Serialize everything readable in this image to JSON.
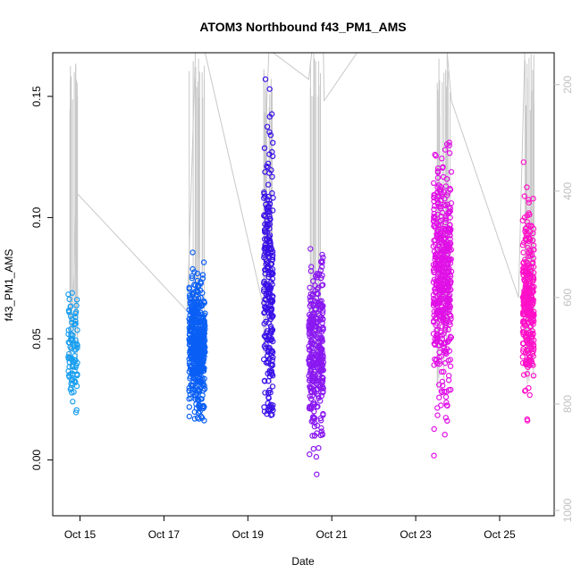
{
  "chart_data": {
    "type": "scatter",
    "title": "ATOM3 Northbound f43_PM1_AMS",
    "xlabel": "Date",
    "ylabel": "f43_PM1_AMS",
    "x_ticks": [
      "Oct 15",
      "Oct 17",
      "Oct 19",
      "Oct 21",
      "Oct 23",
      "Oct 25"
    ],
    "x_tick_day": [
      15,
      17,
      19,
      21,
      23,
      25
    ],
    "xlim_day": [
      14.35,
      26.3
    ],
    "ylim": [
      -0.023,
      0.168
    ],
    "y_ticks": [
      0.0,
      0.05,
      0.1,
      0.15
    ],
    "y_tick_labels": [
      "0.00",
      "0.05",
      "0.10",
      "0.15"
    ],
    "y2_ticks": [
      200,
      400,
      600,
      800,
      1000
    ],
    "y2_tick_labels": [
      "200",
      "400",
      "600",
      "800",
      "1000"
    ],
    "y2lim": [
      1010,
      140
    ],
    "grid": false,
    "series": [
      {
        "day_range": [
          14.72,
          14.94
        ],
        "y_center": 0.045,
        "y_spread": 0.011,
        "y_range": [
          -0.001,
          0.078
        ],
        "count": 90,
        "color": "#1a9ff0"
      },
      {
        "day_range": [
          17.6,
          17.98
        ],
        "y_center": 0.047,
        "y_spread": 0.012,
        "y_range": [
          0.016,
          0.13
        ],
        "count": 520,
        "color": "#0a5ff5"
      },
      {
        "day_range": [
          19.38,
          19.6
        ],
        "y_center": 0.07,
        "y_spread": 0.03,
        "y_range": [
          0.018,
          0.16
        ],
        "count": 260,
        "color": "#3a10e8"
      },
      {
        "day_range": [
          20.45,
          20.8
        ],
        "y_center": 0.045,
        "y_spread": 0.018,
        "y_range": [
          -0.016,
          0.122
        ],
        "count": 320,
        "color": "#8a18f0"
      },
      {
        "day_range": [
          23.42,
          23.85
        ],
        "y_center": 0.075,
        "y_spread": 0.022,
        "y_range": [
          -0.008,
          0.132
        ],
        "count": 470,
        "color": "#e010e6"
      },
      {
        "day_range": [
          25.55,
          25.82
        ],
        "y_center": 0.065,
        "y_spread": 0.017,
        "y_range": [
          0.015,
          0.132
        ],
        "count": 300,
        "color": "#ff10c8"
      }
    ],
    "altitude_trace": {
      "axis": "right",
      "color": "#c8c8c8",
      "path": [
        [
          14.72,
          720
        ],
        [
          14.78,
          680
        ],
        [
          14.82,
          600
        ],
        [
          14.86,
          560
        ],
        [
          14.9,
          420
        ],
        [
          14.94,
          405
        ],
        [
          17.55,
          625
        ],
        [
          17.6,
          520
        ],
        [
          17.75,
          140
        ],
        [
          17.82,
          140
        ],
        [
          17.9,
          140
        ],
        [
          17.98,
          140
        ],
        [
          19.38,
          620
        ],
        [
          19.42,
          300
        ],
        [
          19.5,
          140
        ],
        [
          19.6,
          140
        ],
        [
          20.45,
          190
        ],
        [
          20.52,
          140
        ],
        [
          20.6,
          140
        ],
        [
          20.7,
          140
        ],
        [
          20.8,
          140
        ],
        [
          20.82,
          230
        ],
        [
          21.6,
          140
        ],
        [
          23.42,
          140
        ],
        [
          23.6,
          140
        ],
        [
          23.75,
          140
        ],
        [
          23.85,
          230
        ],
        [
          25.45,
          600
        ],
        [
          25.6,
          140
        ],
        [
          25.82,
          140
        ]
      ]
    }
  }
}
